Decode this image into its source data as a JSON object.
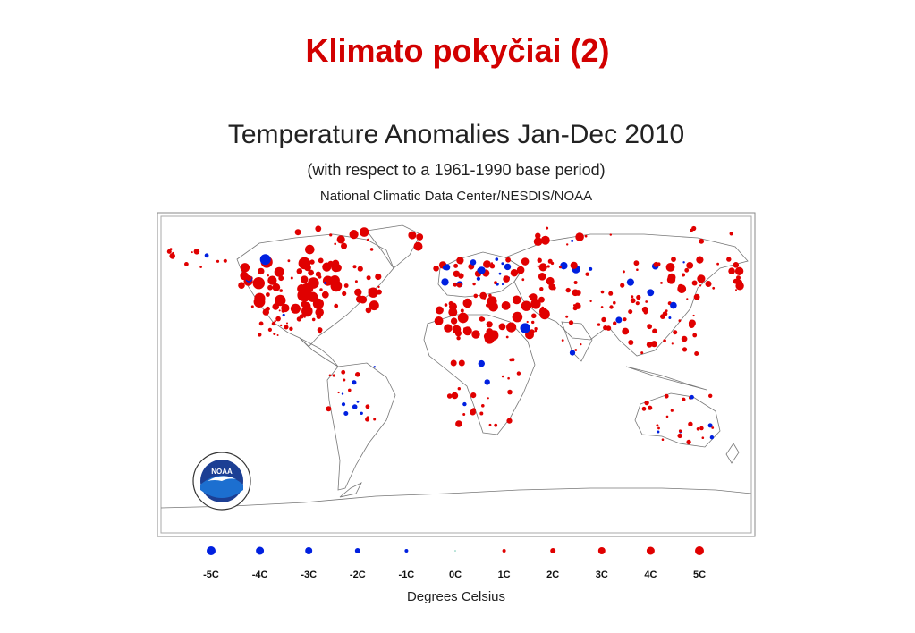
{
  "slide": {
    "title": "Klimato pokyčiai (2)"
  },
  "figure": {
    "title": "Temperature Anomalies Jan-Dec 2010",
    "subtitle": "(with respect to a 1961-1990 base period)",
    "source": "National Climatic Data Center/NESDIS/NOAA"
  },
  "logo": {
    "text": "NOAA"
  },
  "legend": {
    "unit_label": "Degrees Celsius",
    "items": [
      "-5C",
      "-4C",
      "-3C",
      "-2C",
      "-1C",
      "0C",
      "1C",
      "2C",
      "3C",
      "4C",
      "5C"
    ]
  },
  "colors": {
    "warm": "#e00000",
    "cool": "#0020e0",
    "title": "#d20000"
  }
}
